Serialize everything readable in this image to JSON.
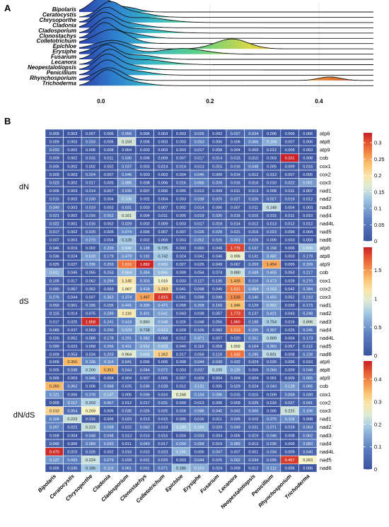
{
  "panels": {
    "a": "A",
    "b": "B"
  },
  "genera": [
    "Bipolaris",
    "Ceratocystis",
    "Chrysoporthe",
    "Cladonia",
    "Cladosporium",
    "Clonostachys",
    "Colletotrichum",
    "Epichloe",
    "Erysiphe",
    "Fusarium",
    "Lecanora",
    "Neopestalotiopsis",
    "Penicillium",
    "Rhynchosporium",
    "Trichoderma"
  ],
  "genes": [
    "atp6",
    "atp8",
    "atp9",
    "cob",
    "cox1",
    "cox2",
    "cox3",
    "nad1",
    "nad2",
    "nad3",
    "nad4",
    "nad4L",
    "nad5",
    "nad6"
  ],
  "chart_data": [
    {
      "type": "ridgeline",
      "panel": "A",
      "categories": [
        "Bipolaris",
        "Ceratocystis",
        "Chrysoporthe",
        "Cladonia",
        "Cladosporium",
        "Clonostachys",
        "Colletotrichum",
        "Epichloe",
        "Erysiphe",
        "Fusarium",
        "Lecanora",
        "Neopestalotiopsis",
        "Penicillium",
        "Rhynchosporium",
        "Trichoderma"
      ],
      "x_ticks": [
        "0.0",
        "0.2",
        "0.4"
      ],
      "xlim": [
        -0.04,
        0.5
      ],
      "peaks": [
        {
          "name": "Bipolaris",
          "modes": [
            [
              0.0,
              0.02,
              1.0
            ],
            [
              0.05,
              0.02,
              0.3
            ]
          ]
        },
        {
          "name": "Ceratocystis",
          "modes": [
            [
              0.015,
              0.02,
              1.0
            ],
            [
              0.06,
              0.03,
              0.35
            ]
          ]
        },
        {
          "name": "Chrysoporthe",
          "modes": [
            [
              0.01,
              0.02,
              1.0
            ],
            [
              0.08,
              0.04,
              0.35
            ]
          ]
        },
        {
          "name": "Cladonia",
          "modes": [
            [
              0.005,
              0.02,
              1.0
            ],
            [
              0.05,
              0.03,
              0.3
            ]
          ]
        },
        {
          "name": "Cladosporium",
          "modes": [
            [
              0.01,
              0.02,
              1.0
            ],
            [
              0.07,
              0.04,
              0.3
            ]
          ]
        },
        {
          "name": "Clonostachys",
          "modes": [
            [
              0.005,
              0.018,
              1.0
            ],
            [
              0.05,
              0.03,
              0.35
            ]
          ]
        },
        {
          "name": "Colletotrichum",
          "modes": [
            [
              0.02,
              0.03,
              1.0
            ]
          ]
        },
        {
          "name": "Epichloe",
          "modes": [
            [
              0.02,
              0.03,
              0.6
            ],
            [
              0.24,
              0.03,
              0.7
            ]
          ]
        },
        {
          "name": "Erysiphe",
          "modes": [
            [
              0.02,
              0.03,
              0.8
            ],
            [
              0.15,
              0.04,
              0.4
            ]
          ]
        },
        {
          "name": "Fusarium",
          "modes": [
            [
              0.01,
              0.02,
              1.0
            ],
            [
              0.07,
              0.03,
              0.3
            ]
          ]
        },
        {
          "name": "Lecanora",
          "modes": [
            [
              0.015,
              0.02,
              1.0
            ],
            [
              0.08,
              0.04,
              0.35
            ]
          ]
        },
        {
          "name": "Neopestalotiopsis",
          "modes": [
            [
              0.01,
              0.02,
              1.0
            ],
            [
              0.05,
              0.03,
              0.3
            ]
          ]
        },
        {
          "name": "Penicillium",
          "modes": [
            [
              0.01,
              0.02,
              1.0
            ],
            [
              0.06,
              0.03,
              0.3
            ]
          ]
        },
        {
          "name": "Rhynchosporium",
          "modes": [
            [
              0.015,
              0.025,
              0.9
            ],
            [
              0.42,
              0.02,
              0.25
            ]
          ]
        },
        {
          "name": "Trichoderma",
          "modes": [
            [
              0.01,
              0.02,
              1.0
            ],
            [
              0.05,
              0.03,
              0.3
            ]
          ]
        }
      ]
    },
    {
      "type": "heatmap",
      "panel": "B",
      "ylabel": "dN",
      "colorbar_ticks": [
        "0.3",
        "0.25",
        "0.2",
        "0.15",
        "0.1",
        "0.05",
        "0"
      ],
      "color_range": [
        0,
        0.33
      ],
      "values": [
        [
          0.009,
          0.003,
          0.007,
          0.006,
          0.056,
          0.006,
          0.003,
          0.003,
          0.026,
          0.002,
          0.027,
          0.034,
          0.006,
          0.005,
          0.006
        ],
        [
          0.009,
          0.003,
          0.033,
          0.006,
          0.159,
          0.006,
          0.003,
          0.003,
          0.053,
          0.006,
          0.006,
          0.066,
          0.104,
          0.007,
          0.006
        ],
        [
          0.033,
          0.002,
          0.006,
          0.008,
          0.004,
          0.003,
          0.003,
          0.003,
          0.017,
          0.008,
          0.004,
          0.009,
          0.012,
          0.005,
          0.003
        ],
        [
          0.009,
          0.002,
          0.015,
          0.011,
          0.03,
          0.006,
          0.009,
          0.007,
          0.017,
          0.014,
          0.015,
          0.01,
          0.003,
          0.331,
          0.008
        ],
        [
          0.006,
          0.002,
          0.002,
          0.002,
          0.037,
          0.003,
          0.014,
          0.014,
          0.013,
          0.015,
          0.016,
          0.048,
          0.005,
          0.009,
          0.016
        ],
        [
          0.009,
          0.003,
          0.024,
          0.007,
          0.046,
          0.003,
          0.003,
          0.004,
          0.046,
          0.009,
          0.014,
          0.012,
          0.013,
          0.007,
          0.005
        ],
        [
          0.023,
          0.002,
          0.017,
          0.005,
          0.085,
          0.008,
          0.006,
          0.016,
          0.066,
          0.028,
          0.016,
          0.016,
          0.01,
          0.022,
          0.091
        ],
        [
          0.006,
          0.003,
          0.014,
          0.007,
          0.039,
          0.007,
          0.006,
          0.005,
          0.012,
          0.009,
          0.011,
          0.013,
          0.008,
          0.011,
          0.007
        ],
        [
          0.015,
          0.003,
          0.03,
          0.004,
          0.108,
          0.002,
          0.004,
          0.003,
          0.038,
          0.025,
          0.027,
          0.026,
          0.027,
          0.019,
          0.012
        ],
        [
          0.049,
          0.003,
          0.019,
          0.003,
          0.031,
          0.003,
          0.007,
          0.002,
          0.014,
          0.006,
          0.007,
          0.011,
          0.148,
          0.004,
          0.003
        ],
        [
          0.021,
          0.002,
          0.016,
          0.052,
          0.161,
          0.004,
          0.011,
          0.005,
          0.019,
          0.026,
          0.016,
          0.016,
          0.015,
          0.011,
          0.01
        ],
        [
          0.022,
          0.001,
          0.016,
          0.002,
          0.029,
          0.002,
          0.009,
          0.003,
          0.017,
          0.018,
          0.014,
          0.012,
          0.013,
          0.012,
          0.012
        ],
        [
          0.017,
          0.002,
          0.02,
          0.005,
          0.074,
          0.006,
          0.007,
          0.007,
          0.026,
          0.028,
          0.021,
          0.016,
          0.023,
          0.006,
          0.004
        ],
        [
          0.007,
          0.003,
          0.07,
          0.004,
          0.128,
          0.002,
          0.009,
          0.003,
          0.052,
          0.026,
          0.061,
          0.026,
          0.009,
          0.003,
          0.003
        ]
      ]
    },
    {
      "type": "heatmap",
      "panel": "B",
      "ylabel": "dS",
      "colorbar_ticks": [
        "1.5",
        "1",
        "0.5",
        "0"
      ],
      "color_range": [
        0,
        1.9
      ],
      "values": [
        [
          0.046,
          0.019,
          0.002,
          0.339,
          0.646,
          0.198,
          0.725,
          0.003,
          0.06,
          0.049,
          1.775,
          0.197,
          0.168,
          0.006,
          0.695
        ],
        [
          0.036,
          0.024,
          0.52,
          0.179,
          0.479,
          0.192,
          0.742,
          0.024,
          0.041,
          0.046,
          0.996,
          0.141,
          0.482,
          0.003,
          0.179
        ],
        [
          0.025,
          0.027,
          0.336,
          0.203,
          1.615,
          1.882,
          0.602,
          0.027,
          0.026,
          0.049,
          0.067,
          0.203,
          1.454,
          0.005,
          0.339
        ],
        [
          0.611,
          0.045,
          0.055,
          0.153,
          0.664,
          0.364,
          0.665,
          0.009,
          0.054,
          0.074,
          0.88,
          0.439,
          0.455,
          0.053,
          0.217
        ],
        [
          0.105,
          0.017,
          0.062,
          0.294,
          1.145,
          0.303,
          1.016,
          0.033,
          0.127,
          0.13,
          1.433,
          0.21,
          0.473,
          0.028,
          0.27
        ],
        [
          0.09,
          0.067,
          0.062,
          0.069,
          1.067,
          0.418,
          1.21,
          0.041,
          0.098,
          0.045,
          1.611,
          0.494,
          0.553,
          0.042,
          0.284
        ],
        [
          0.276,
          0.044,
          0.037,
          0.363,
          0.374,
          1.467,
          1.815,
          0.041,
          0.098,
          0.098,
          1.539,
          0.24,
          0.45,
          0.051,
          0.21
        ],
        [
          0.093,
          0.061,
          0.155,
          0.155,
          0.441,
          0.399,
          0.471,
          0.058,
          0.258,
          0.159,
          1.346,
          0.129,
          0.562,
          0.03,
          0.173
        ],
        [
          0.115,
          0.014,
          0.075,
          0.289,
          1.116,
          0.401,
          0.541,
          0.043,
          0.038,
          0.057,
          1.773,
          0.137,
          0.421,
          0.043,
          0.248
        ],
        [
          0.017,
          0.025,
          1.858,
          0.241,
          0.418,
          0.86,
          0.548,
          0.026,
          0.048,
          0.056,
          1.86,
          0.188,
          0.754,
          0.016,
          0.896
        ],
        [
          0.085,
          0.037,
          0.063,
          0.2,
          0.529,
          0.728,
          0.613,
          0.028,
          0.106,
          0.082,
          1.613,
          0.335,
          0.307,
          0.025,
          0.245
        ],
        [
          0.026,
          0.051,
          0.089,
          0.178,
          0.291,
          0.382,
          0.068,
          0.012,
          0.471,
          0.007,
          0.02,
          0.351,
          0.809,
          0.004,
          0.173
        ],
        [
          0.099,
          0.023,
          0.058,
          0.266,
          0.431,
          0.552,
          0.633,
          0.04,
          0.116,
          0.058,
          1.002,
          0.164,
          0.363,
          0.057,
          0.112
        ],
        [
          0.009,
          0.053,
          0.034,
          0.203,
          0.964,
          0.663,
          1.262,
          0.017,
          0.058,
          0.119,
          1.633,
          0.295,
          0.831,
          0.008,
          0.228
        ]
      ]
    },
    {
      "type": "heatmap",
      "panel": "B",
      "ylabel": "dN/dS",
      "colorbar_ticks": [
        "0.4",
        "0.3",
        "0.2",
        "0.1",
        "0"
      ],
      "color_range": [
        0,
        0.48
      ],
      "values": [
        [
          0.009,
          0.35,
          0.106,
          0.114,
          0.041,
          0.006,
          0.006,
          0.008,
          0.044,
          0.039,
          0.032,
          0.024,
          0.026,
          0.006,
          0.01
        ],
        [
          0.005,
          0.038,
          0.2,
          0.351,
          0.043,
          0.044,
          0.072,
          0.003,
          0.037,
          0.2,
          0.126,
          0.006,
          0.069,
          0.009,
          0.048
        ],
        [
          0.006,
          0.003,
          0.046,
          0.004,
          0.004,
          0.007,
          0.005,
          0.007,
          0.009,
          0.004,
          0.004,
          0.004,
          0.001,
          0.009,
          0.065
        ],
        [
          0.35,
          0.062,
          0.006,
          0.068,
          0.025,
          0.036,
          0.028,
          0.012,
          0.131,
          0.005,
          0.029,
          0.024,
          0.043,
          0.128,
          0.065
        ],
        [
          0.121,
          0.006,
          0.078,
          0.147,
          0.005,
          0.036,
          0.016,
          0.248,
          0.104,
          0.096,
          0.015,
          0.015,
          0.009,
          0.058,
          0.03
        ],
        [
          0.009,
          0.117,
          0.203,
          0.067,
          0.012,
          0.017,
          0.031,
          0.009,
          0.013,
          0.006,
          0.009,
          0.029,
          0.016,
          0.027,
          0.041
        ],
        [
          0.31,
          0.054,
          0.269,
          0.006,
          0.035,
          0.026,
          0.025,
          0.028,
          0.088,
          0.045,
          0.042,
          0.066,
          0.005,
          0.225,
          0.106
        ],
        [
          0.104,
          0.223,
          0.016,
          0.006,
          0.023,
          0.013,
          0.015,
          0.005,
          0.016,
          0.011,
          0.026,
          0.016,
          0.07,
          0.118,
          0.008
        ],
        [
          0.097,
          0.022,
          0.223,
          0.098,
          0.022,
          0.062,
          0.018,
          0.18,
          0.166,
          0.029,
          0.049,
          0.031,
          0.071,
          0.028,
          0.063
        ],
        [
          0.008,
          0.004,
          0.048,
          0.048,
          0.013,
          0.013,
          0.016,
          0.004,
          0.033,
          0.004,
          0.005,
          0.019,
          0.046,
          0.008,
          0.062
        ],
        [
          0.045,
          0.006,
          0.089,
          0.093,
          0.011,
          0.043,
          0.017,
          0.099,
          0.058,
          0.019,
          0.083,
          0.013,
          0.036,
          0.006,
          0.083
        ],
        [
          0.47,
          0.015,
          0.026,
          0.002,
          0.018,
          0.01,
          0.023,
          0.156,
          0.006,
          0.047,
          0.007,
          0.001,
          0.034,
          0.009,
          0.04
        ],
        [
          0.127,
          0.093,
          0.224,
          0.079,
          0.028,
          0.031,
          0.029,
          0.003,
          0.044,
          0.025,
          0.062,
          0.034,
          0.035,
          0.457,
          0.263
        ],
        [
          0.006,
          0.036,
          0.186,
          0.119,
          0.061,
          0.031,
          0.071,
          0.186,
          0.153,
          0.024,
          0.009,
          0.012,
          0.112,
          0.006,
          0.006
        ]
      ]
    }
  ]
}
